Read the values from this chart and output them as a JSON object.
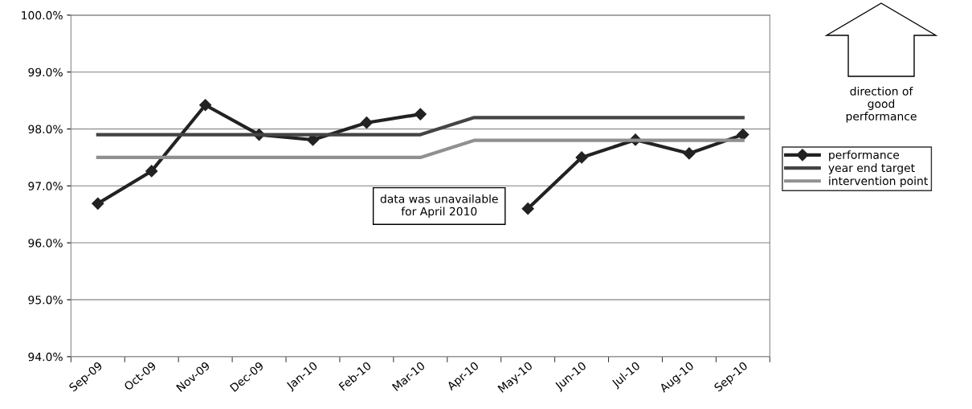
{
  "chart_data": {
    "type": "line",
    "categories": [
      "Sep-09",
      "Oct-09",
      "Nov-09",
      "Dec-09",
      "Jan-10",
      "Feb-10",
      "Mar-10",
      "Apr-10",
      "May-10",
      "Jun-10",
      "Jul-10",
      "Aug-10",
      "Sep-10"
    ],
    "series": [
      {
        "name": "performance",
        "color": "#222222",
        "marker": "diamond",
        "values": [
          96.69,
          97.26,
          98.42,
          97.9,
          97.81,
          98.11,
          98.26,
          null,
          96.6,
          97.5,
          97.81,
          97.57,
          97.9
        ]
      },
      {
        "name": "year end target",
        "color": "#444444",
        "marker": "none",
        "values": [
          97.9,
          97.9,
          97.9,
          97.9,
          97.9,
          97.9,
          97.9,
          98.2,
          98.2,
          98.2,
          98.2,
          98.2,
          98.2
        ]
      },
      {
        "name": "intervention point",
        "color": "#909090",
        "marker": "none",
        "values": [
          97.5,
          97.5,
          97.5,
          97.5,
          97.5,
          97.5,
          97.5,
          97.8,
          97.8,
          97.8,
          97.8,
          97.8,
          97.8
        ]
      }
    ],
    "ylim": [
      94,
      100
    ],
    "yticks": [
      {
        "value": 94,
        "label": "94.0%"
      },
      {
        "value": 95,
        "label": "95.0%"
      },
      {
        "value": 96,
        "label": "96.0%"
      },
      {
        "value": 97,
        "label": "97.0%"
      },
      {
        "value": 98,
        "label": "98.0%"
      },
      {
        "value": 99,
        "label": "99.0%"
      },
      {
        "value": 100,
        "label": "100.0%"
      }
    ],
    "grid": "y",
    "legend": "right",
    "line_style": "solid",
    "annotations": [
      "data was unavailable\nfor April 2010",
      "direction of\ngood\nperformance"
    ]
  }
}
